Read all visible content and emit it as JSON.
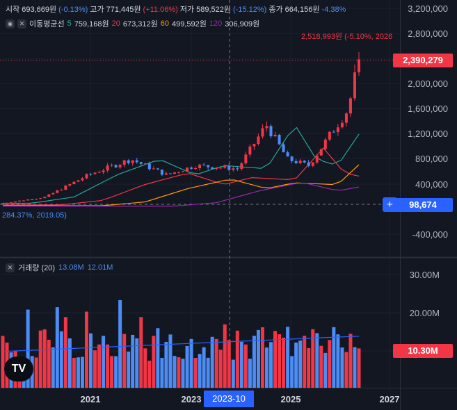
{
  "ohlc": {
    "open_label": "시작",
    "open": "693,669원",
    "open_chg": "(-0.13%)",
    "high_label": "고가",
    "high": "771,445원",
    "high_chg": "(+11.06%)",
    "low_label": "저가",
    "low": "589,522원",
    "low_chg": "(-15.12%)",
    "close_label": "종가",
    "close": "664,156원",
    "close_chg": "-4.38%"
  },
  "ma": {
    "name": "이동평균선",
    "p1": "5",
    "v1": "759,168원",
    "p2": "20",
    "v2": "673,312원",
    "p3": "60",
    "v3": "499,592원",
    "p4": "120",
    "v4": "306,909원"
  },
  "volume": {
    "name": "거래량 (20)",
    "v1": "13.08M",
    "v2": "12.01M"
  },
  "price_axis": [
    "3,200,000",
    "2,800,000",
    "2,390,279",
    "2,000,000",
    "1,600,000",
    "1,200,000",
    "800,000",
    "400,000",
    "98,674",
    "-400,000"
  ],
  "volume_axis": [
    "30.00M",
    "20.00M",
    "10.30M"
  ],
  "time_axis": [
    "2021",
    "2023",
    "2023-10",
    "2025",
    "2027"
  ],
  "annotations": {
    "high_note": "2,518,993원 (-5.10%, 2026",
    "low_note": "284.37%, 2019.05)"
  },
  "logo": "TV",
  "colors": {
    "up": "#f23645",
    "down": "#4c8cf5",
    "ma5": "#26a69a",
    "ma20": "#f23645",
    "ma60": "#ff9800",
    "ma120": "#9c27b0",
    "bg": "#131722"
  },
  "chart_data": {
    "type": "candlestick",
    "x_ticks": [
      "2021",
      "2023",
      "2025",
      "2027"
    ],
    "price_range": [
      -400000,
      3200000
    ],
    "candles_approx": {
      "start_close": 98674,
      "peak_2024": 1400000,
      "low_2025": 700000,
      "last_close": 2390279,
      "last_high": 2518993
    },
    "volume_range": [
      0,
      30000000
    ],
    "volume_last": 10300000
  }
}
